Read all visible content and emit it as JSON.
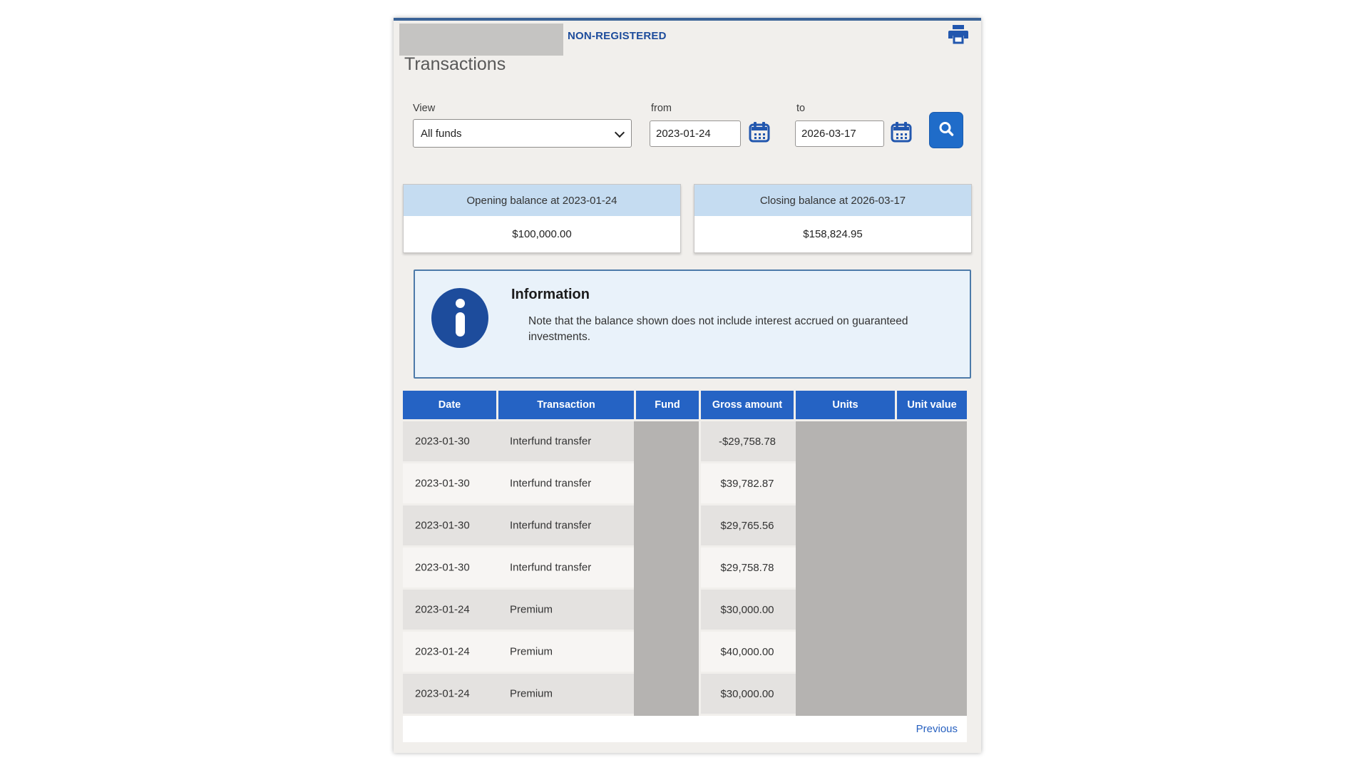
{
  "theme": {
    "panel_bg": "#f1efec",
    "topline": "#3b6397",
    "accent_blue": "#1f6cc9",
    "brand_blue": "#2257ae",
    "navy_text": "#1d4c9c",
    "table_header_bg": "#2563c4",
    "card_header_bg": "#c5dcf1",
    "info_bg": "#e9f2fa",
    "info_border": "#4d7aa9",
    "row_dark": "#e4e2e0",
    "row_light": "#f7f5f3",
    "redaction_gray": "#b5b3b1",
    "redaction_light": "#c5c4c2",
    "link_blue": "#2861c0"
  },
  "header": {
    "plan_type_label": "NON-REGISTERED"
  },
  "page_title": "Transactions",
  "filters": {
    "view": {
      "label": "View",
      "value": "All funds"
    },
    "from": {
      "label": "from",
      "value": "2023-01-24"
    },
    "to": {
      "label": "to",
      "value": "2026-03-17"
    }
  },
  "balances": {
    "opening": {
      "label": "Opening balance at 2023-01-24",
      "value": "$100,000.00"
    },
    "closing": {
      "label": "Closing balance at 2026-03-17",
      "value": "$158,824.95"
    }
  },
  "information": {
    "title": "Information",
    "body": "Note that the balance shown does not include interest accrued on guaranteed investments."
  },
  "table": {
    "columns": [
      "Date",
      "Transaction",
      "Fund",
      "Gross amount",
      "Units",
      "Unit value"
    ],
    "rows": [
      {
        "date": "2023-01-30",
        "transaction": "Interfund transfer",
        "gross_amount": "-$29,758.78"
      },
      {
        "date": "2023-01-30",
        "transaction": "Interfund transfer",
        "gross_amount": "$39,782.87"
      },
      {
        "date": "2023-01-30",
        "transaction": "Interfund transfer",
        "gross_amount": "$29,765.56"
      },
      {
        "date": "2023-01-30",
        "transaction": "Interfund transfer",
        "gross_amount": "$29,758.78"
      },
      {
        "date": "2023-01-24",
        "transaction": "Premium",
        "gross_amount": "$30,000.00"
      },
      {
        "date": "2023-01-24",
        "transaction": "Premium",
        "gross_amount": "$40,000.00"
      },
      {
        "date": "2023-01-24",
        "transaction": "Premium",
        "gross_amount": "$30,000.00"
      }
    ]
  },
  "pagination": {
    "previous_label": "Previous"
  }
}
